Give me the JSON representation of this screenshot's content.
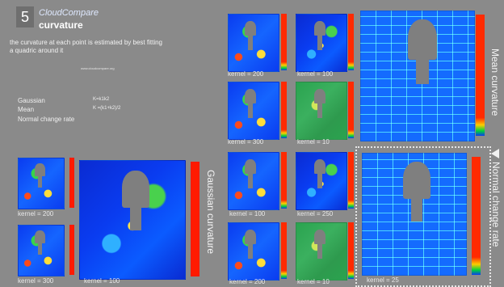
{
  "slide": {
    "number": "5",
    "brand": "CloudCompare",
    "title": "curvature",
    "description": "the curvature at each point is estimated by best fitting a quadric around it",
    "url": "www.cloudcompare.org"
  },
  "formulas": [
    {
      "name": "Gaussian",
      "expr": "K=k1k2"
    },
    {
      "name": "Mean",
      "expr": "K =(k1+k2)/2"
    },
    {
      "name": "Normal change rate",
      "expr": ""
    }
  ],
  "labels": {
    "gaussian_kernels": [
      "kernel = 200",
      "kernel = 300",
      "kernel = 100"
    ],
    "mean_kernels": [
      "kernel = 200",
      "kernel = 100",
      "kernel = 300",
      "kernel = 10"
    ],
    "normal_kernels": [
      "kernel = 100",
      "kernel = 250",
      "kernel = 200",
      "kernel = 10",
      "kernel = 25"
    ],
    "section_titles": [
      "Mean curvature",
      "Gaussian curvature",
      "Normal change rate"
    ]
  }
}
